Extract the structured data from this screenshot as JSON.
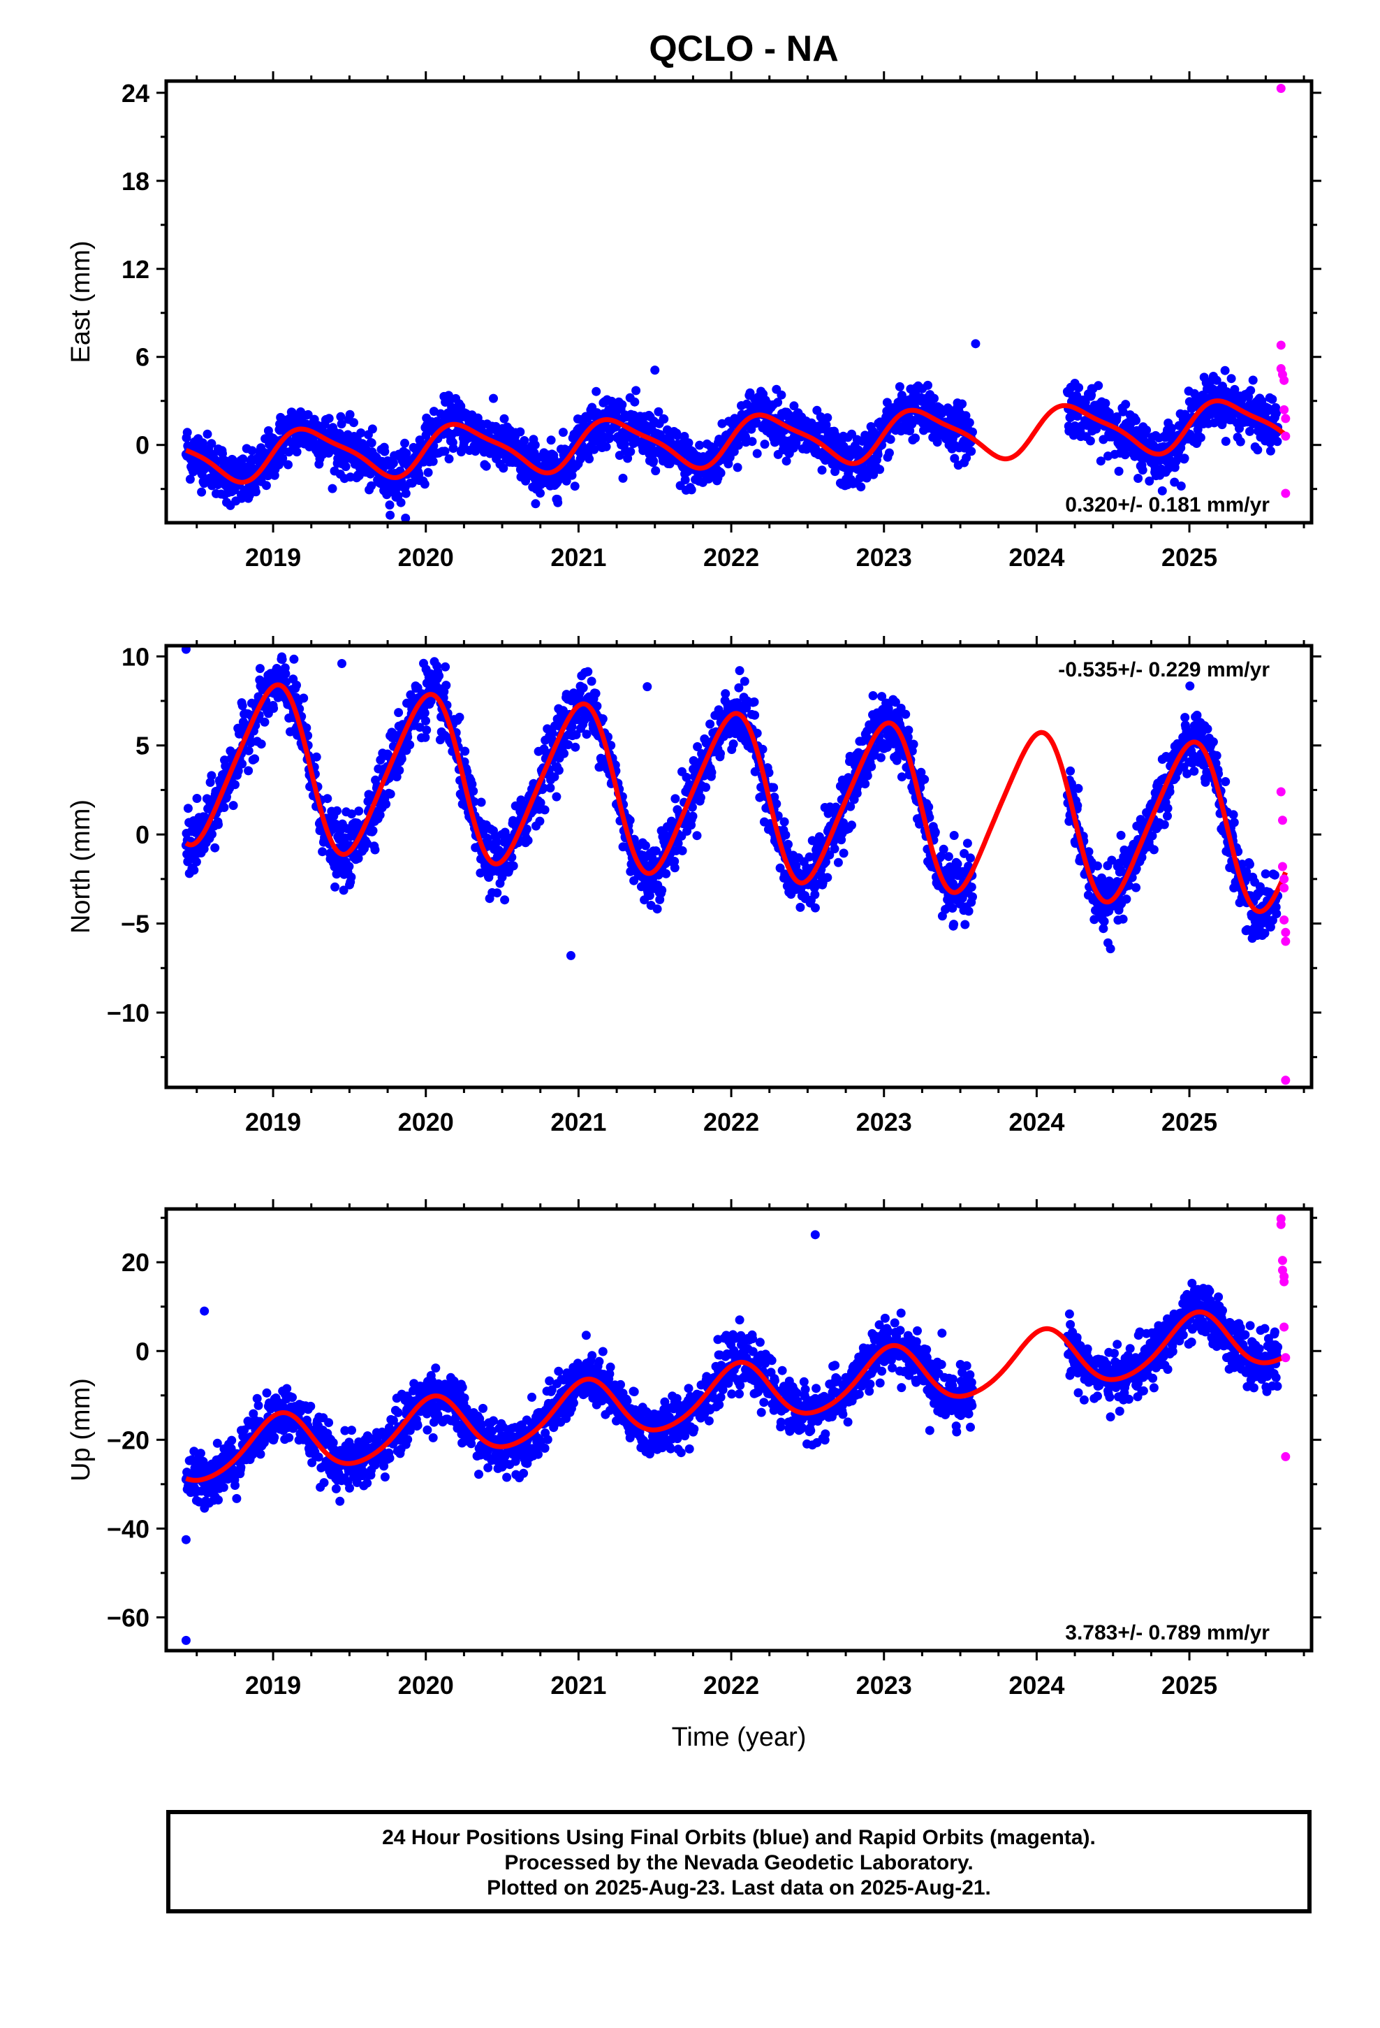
{
  "title": "QCLO - NA",
  "footer": {
    "line1": "24 Hour Positions Using Final Orbits (blue) and Rapid Orbits (magenta).",
    "line2": "Processed by the Nevada Geodetic Laboratory.",
    "line3": "Plotted on 2025-Aug-23. Last data on 2025-Aug-21."
  },
  "colors": {
    "final": "#0000ff",
    "rapid": "#ff00ff",
    "model": "#ff0000"
  },
  "chart_data": [
    {
      "type": "scatter",
      "panel": "east",
      "ylabel": "East (mm)",
      "xlabel": "",
      "rate": "0.320+/- 0.181 mm/yr",
      "xlim": [
        2018.3,
        2025.8
      ],
      "ylim": [
        -5.3,
        24.8
      ],
      "yticks": [
        0,
        6,
        12,
        18,
        24
      ],
      "xticks": [
        2019,
        2020,
        2021,
        2022,
        2023,
        2024,
        2025
      ],
      "data_span": [
        2018.43,
        2025.63
      ],
      "gap": [
        2023.58,
        2024.2
      ],
      "model": {
        "offset": 0.32,
        "trend": 0.32,
        "amp_annual": 1.6,
        "phase_annual": 0.0,
        "amp_semi": 0.4,
        "phase_semi": 0.3,
        "noise": 0.9
      },
      "rapid_points": [
        [
          2025.6,
          24.3
        ],
        [
          2025.6,
          6.8
        ],
        [
          2025.6,
          5.2
        ],
        [
          2025.61,
          4.8
        ],
        [
          2025.62,
          4.4
        ],
        [
          2025.62,
          2.4
        ],
        [
          2025.63,
          1.8
        ],
        [
          2025.63,
          0.6
        ],
        [
          2025.63,
          -3.3
        ]
      ],
      "outliers": [
        [
          2023.6,
          6.9
        ],
        [
          2024.25,
          4.2
        ],
        [
          2021.5,
          5.1
        ]
      ]
    },
    {
      "type": "scatter",
      "panel": "north",
      "ylabel": "North (mm)",
      "xlabel": "",
      "rate": "-0.535+/- 0.229 mm/yr",
      "xlim": [
        2018.3,
        2025.8
      ],
      "ylim": [
        -14.2,
        10.6
      ],
      "yticks": [
        -10,
        -5,
        0,
        5,
        10
      ],
      "xticks": [
        2019,
        2020,
        2021,
        2022,
        2023,
        2024,
        2025
      ],
      "data_span": [
        2018.43,
        2025.63
      ],
      "gap": [
        2023.58,
        2024.2
      ],
      "model": {
        "offset": 2.2,
        "trend": -0.535,
        "amp_annual": 4.5,
        "phase_annual": 1.6,
        "amp_semi": 0.6,
        "phase_semi": 0.0,
        "noise": 0.9
      },
      "rapid_points": [
        [
          2025.6,
          2.4
        ],
        [
          2025.61,
          0.8
        ],
        [
          2025.61,
          -1.8
        ],
        [
          2025.62,
          -2.5
        ],
        [
          2025.62,
          -3.0
        ],
        [
          2025.62,
          -4.8
        ],
        [
          2025.63,
          -5.5
        ],
        [
          2025.63,
          -6.0
        ],
        [
          2025.63,
          -13.8
        ]
      ],
      "outliers": [
        [
          2018.43,
          10.4
        ],
        [
          2019.45,
          9.6
        ],
        [
          2021.45,
          8.3
        ],
        [
          2020.95,
          -6.8
        ]
      ]
    },
    {
      "type": "scatter",
      "panel": "up",
      "ylabel": "Up (mm)",
      "xlabel": "Time (year)",
      "rate": "3.783+/- 0.789 mm/yr",
      "xlim": [
        2018.3,
        2025.8
      ],
      "ylim": [
        -67.5,
        32.0
      ],
      "yticks": [
        -60,
        -40,
        -20,
        0,
        20
      ],
      "xticks": [
        2019,
        2020,
        2021,
        2022,
        2023,
        2024,
        2025
      ],
      "data_span": [
        2018.43,
        2025.63
      ],
      "gap": [
        2023.58,
        2024.2
      ],
      "model": {
        "offset": -10.0,
        "trend": 3.783,
        "amp_annual": 6.5,
        "phase_annual": 1.3,
        "amp_semi": 0.8,
        "phase_semi": 0.5,
        "noise": 3.0
      },
      "rapid_points": [
        [
          2025.6,
          29.8
        ],
        [
          2025.6,
          28.5
        ],
        [
          2025.61,
          20.4
        ],
        [
          2025.61,
          18.2
        ],
        [
          2025.62,
          16.8
        ],
        [
          2025.62,
          15.6
        ],
        [
          2025.62,
          5.4
        ],
        [
          2025.63,
          -1.5
        ],
        [
          2025.63,
          -23.8
        ]
      ],
      "outliers": [
        [
          2018.43,
          -42.5
        ],
        [
          2018.43,
          -65.2
        ],
        [
          2018.55,
          9.0
        ],
        [
          2022.55,
          26.2
        ],
        [
          2023.3,
          -17.9
        ]
      ]
    }
  ]
}
